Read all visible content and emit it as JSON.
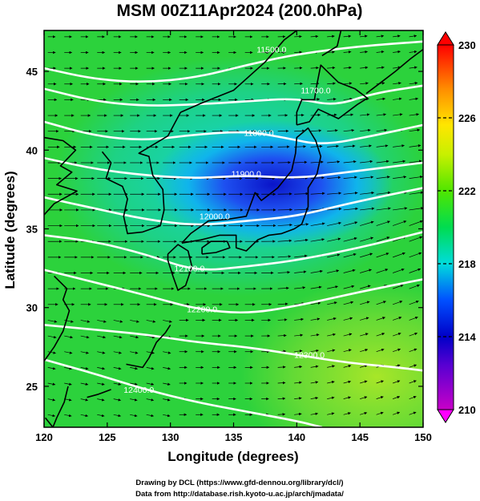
{
  "chart_data": {
    "type": "heatmap",
    "title": "MSM 00Z11Apr2024 (200.0hPa)",
    "xlabel": "Longitude (degrees)",
    "ylabel": "Latitude  (degrees)",
    "xlim": [
      120,
      150
    ],
    "ylim": [
      22.4,
      47.6
    ],
    "x_ticks": [
      120,
      125,
      130,
      135,
      140,
      145,
      150
    ],
    "y_ticks": [
      25,
      30,
      35,
      40,
      45
    ],
    "colorbar": {
      "min": 210,
      "max": 230,
      "ticks": [
        210,
        214,
        218,
        222,
        226,
        230
      ]
    },
    "shaded_field": "temperature (K)",
    "contours": [
      {
        "label": "11500.0",
        "lon": 138.0,
        "lat": 46.2
      },
      {
        "label": "11700.0",
        "lon": 141.5,
        "lat": 43.6
      },
      {
        "label": "11800.0",
        "lon": 137.0,
        "lat": 40.9
      },
      {
        "label": "11900.0",
        "lon": 136.0,
        "lat": 38.3
      },
      {
        "label": "12000.0",
        "lon": 133.5,
        "lat": 35.6
      },
      {
        "label": "12100.0",
        "lon": 131.5,
        "lat": 32.3
      },
      {
        "label": "12200.0",
        "lon": 132.5,
        "lat": 29.7
      },
      {
        "label": "12300.0",
        "lon": 141.0,
        "lat": 26.8
      },
      {
        "label": "12400.0",
        "lon": 127.5,
        "lat": 24.6
      }
    ],
    "wind_vectors": "arrows (mainly westerly)",
    "grid": false
  },
  "credits": {
    "line1": "Drawing by DCL (https://www.gfd-dennou.org/library/dcl/)",
    "line2": "Data from http://database.rish.kyoto-u.ac.jp/arch/jmadata/"
  },
  "colors": {
    "bg": "#ffffff",
    "text": "#000000",
    "contour": "#ffffff"
  }
}
